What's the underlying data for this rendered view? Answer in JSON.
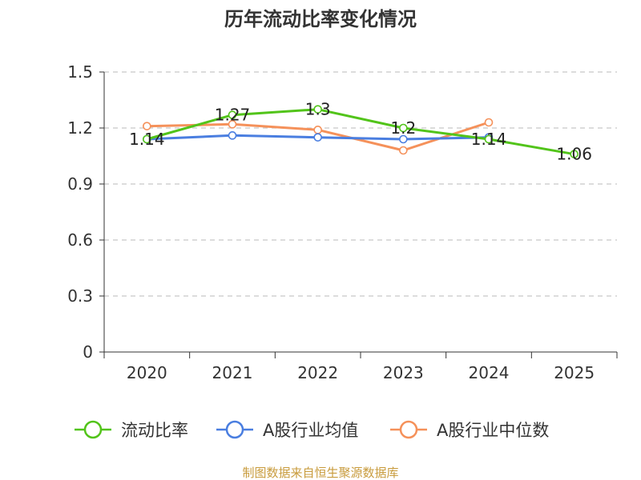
{
  "chart_data": {
    "type": "line",
    "title": "历年流动比率变化情况",
    "categories": [
      "2020",
      "2021",
      "2022",
      "2023",
      "2024",
      "2025"
    ],
    "ylim": [
      0,
      1.5
    ],
    "yticks": [
      "0",
      "0.3",
      "0.6",
      "0.9",
      "1.2",
      "1.5"
    ],
    "ytick_values": [
      0,
      0.3,
      0.6,
      0.9,
      1.2,
      1.5
    ],
    "grid": true,
    "legend_position": "bottom",
    "series": [
      {
        "name": "流动比率",
        "color": "#52c41a",
        "values": [
          1.14,
          1.27,
          1.3,
          1.2,
          1.14,
          1.06
        ],
        "labels": [
          "1.14",
          "1.27",
          "1.3",
          "1.2",
          "1.14",
          "1.06"
        ]
      },
      {
        "name": "A股行业均值",
        "color": "#4a7ee0",
        "values": [
          1.14,
          1.16,
          1.15,
          1.14,
          1.15,
          null
        ]
      },
      {
        "name": "A股行业中位数",
        "color": "#f5915a",
        "values": [
          1.21,
          1.22,
          1.19,
          1.08,
          1.23,
          null
        ]
      }
    ],
    "source": "制图数据来自恒生聚源数据库"
  }
}
